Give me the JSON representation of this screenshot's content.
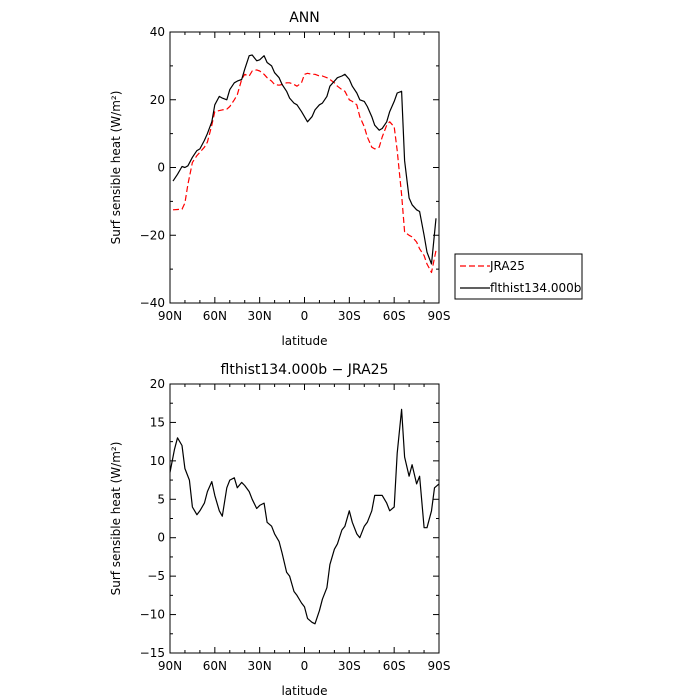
{
  "chart_data": [
    {
      "type": "line",
      "title": "ANN",
      "xlabel": "latitude",
      "ylabel": "Surf sensible heat (W/m²)",
      "xlim": [
        90,
        -90
      ],
      "ylim": [
        -40,
        40
      ],
      "xticks": [
        90,
        60,
        30,
        0,
        -30,
        -60,
        -90
      ],
      "xtick_labels": [
        "90N",
        "60N",
        "30N",
        "0",
        "30S",
        "60S",
        "90S"
      ],
      "yticks": [
        -40,
        -20,
        0,
        20,
        40
      ],
      "ytick_labels": [
        "−40",
        "−20",
        "0",
        "20",
        "40"
      ],
      "legend_position": "right",
      "series": [
        {
          "name": "JRA25",
          "color": "#ff0000",
          "style": "dashed",
          "x": [
            88,
            85,
            82,
            80,
            78,
            75,
            72,
            70,
            67,
            65,
            62,
            60,
            57,
            55,
            52,
            50,
            47,
            45,
            42,
            40,
            37,
            35,
            32,
            30,
            27,
            25,
            22,
            20,
            17,
            15,
            12,
            10,
            7,
            5,
            2,
            0,
            -2,
            -5,
            -7,
            -10,
            -12,
            -15,
            -17,
            -20,
            -22,
            -25,
            -27,
            -30,
            -32,
            -35,
            -37,
            -40,
            -42,
            -45,
            -47,
            -50,
            -52,
            -55,
            -57,
            -60,
            -62,
            -65,
            -67,
            -70,
            -72,
            -75,
            -77,
            -80,
            -82,
            -85,
            -88
          ],
          "y": [
            -12.5,
            -12.4,
            -12.3,
            -10.5,
            -5.0,
            1.5,
            3.5,
            4.5,
            6.0,
            7.5,
            12.5,
            16.5,
            16.8,
            17.0,
            17.2,
            18.0,
            20.0,
            21.5,
            26.0,
            27.5,
            27.0,
            28.5,
            28.8,
            28.5,
            27.5,
            26.5,
            25.5,
            24.5,
            24.3,
            24.5,
            25.0,
            25.0,
            24.5,
            24.0,
            25.0,
            27.5,
            27.8,
            27.5,
            27.5,
            27.0,
            27.0,
            26.5,
            26.0,
            25.0,
            24.0,
            23.0,
            22.5,
            20.0,
            19.5,
            18.5,
            15.0,
            12.0,
            9.0,
            6.0,
            5.5,
            6.0,
            9.0,
            12.5,
            13.5,
            12.0,
            5.0,
            -8.0,
            -19.0,
            -20.0,
            -20.5,
            -22.0,
            -24.0,
            -26.0,
            -28.5,
            -31.0,
            -24.5
          ]
        },
        {
          "name": "flthist134.000b",
          "color": "#000000",
          "style": "solid",
          "x": [
            88,
            85,
            82,
            80,
            78,
            75,
            72,
            70,
            67,
            65,
            62,
            60,
            57,
            55,
            52,
            50,
            47,
            45,
            42,
            40,
            37,
            35,
            32,
            30,
            27,
            25,
            22,
            20,
            17,
            15,
            12,
            10,
            7,
            5,
            2,
            0,
            -2,
            -5,
            -7,
            -10,
            -12,
            -15,
            -17,
            -20,
            -22,
            -25,
            -27,
            -30,
            -32,
            -35,
            -37,
            -40,
            -42,
            -45,
            -47,
            -50,
            -52,
            -55,
            -57,
            -60,
            -62,
            -65,
            -67,
            -70,
            -72,
            -75,
            -77,
            -80,
            -82,
            -85,
            -88
          ],
          "y": [
            -4.0,
            -2.0,
            0.3,
            0.0,
            0.5,
            3.0,
            5.0,
            5.5,
            8.0,
            10.0,
            13.5,
            18.5,
            21.0,
            20.5,
            20.0,
            23.0,
            25.0,
            25.5,
            26.0,
            29.0,
            33.0,
            33.2,
            31.5,
            31.8,
            33.0,
            31.0,
            30.0,
            28.0,
            26.5,
            24.5,
            22.5,
            20.5,
            19.0,
            18.5,
            16.5,
            15.0,
            13.5,
            15.0,
            17.0,
            18.5,
            19.0,
            21.0,
            24.0,
            25.5,
            26.5,
            27.0,
            27.5,
            26.0,
            24.0,
            22.0,
            20.0,
            19.5,
            18.0,
            15.0,
            12.5,
            11.0,
            11.5,
            13.5,
            16.5,
            19.5,
            22.0,
            22.5,
            2.0,
            -9.0,
            -11.0,
            -12.5,
            -13.0,
            -20.0,
            -25.0,
            -28.5,
            -15.0
          ]
        }
      ]
    },
    {
      "type": "line",
      "title": "flthist134.000b − JRA25",
      "xlabel": "latitude",
      "ylabel": "Surf sensible heat (W/m²)",
      "xlim": [
        90,
        -90
      ],
      "ylim": [
        -15,
        20
      ],
      "xticks": [
        90,
        60,
        30,
        0,
        -30,
        -60,
        -90
      ],
      "xtick_labels": [
        "90N",
        "60N",
        "30N",
        "0",
        "30S",
        "60S",
        "90S"
      ],
      "yticks": [
        -15,
        -10,
        -5,
        0,
        5,
        10,
        15,
        20
      ],
      "ytick_labels": [
        "−15",
        "−10",
        "−5",
        "0",
        "5",
        "10",
        "15",
        "20"
      ],
      "series": [
        {
          "color": "#000000",
          "style": "solid",
          "x": [
            90,
            87,
            85,
            82,
            80,
            77,
            75,
            72,
            70,
            67,
            65,
            62,
            60,
            57,
            55,
            52,
            50,
            47,
            45,
            42,
            40,
            37,
            35,
            32,
            30,
            27,
            25,
            22,
            20,
            17,
            15,
            12,
            10,
            7,
            5,
            2,
            0,
            -2,
            -5,
            -7,
            -10,
            -12,
            -15,
            -17,
            -20,
            -22,
            -25,
            -27,
            -30,
            -32,
            -35,
            -37,
            -40,
            -42,
            -45,
            -47,
            -50,
            -52,
            -55,
            -57,
            -60,
            -62,
            -65,
            -67,
            -70,
            -72,
            -75,
            -77,
            -80,
            -82,
            -85,
            -87,
            -90
          ],
          "y": [
            8.5,
            11.5,
            13.0,
            12.0,
            9.0,
            7.5,
            4.0,
            3.0,
            3.5,
            4.5,
            6.0,
            7.3,
            5.5,
            3.5,
            2.8,
            6.5,
            7.5,
            7.8,
            6.5,
            7.2,
            6.8,
            6.0,
            5.0,
            3.8,
            4.2,
            4.5,
            2.0,
            1.5,
            0.5,
            -0.5,
            -2.0,
            -4.5,
            -5.0,
            -7.0,
            -7.5,
            -8.5,
            -9.0,
            -10.5,
            -11.0,
            -11.2,
            -9.5,
            -8.0,
            -6.5,
            -3.5,
            -1.5,
            -0.8,
            1.0,
            1.5,
            3.5,
            2.0,
            0.5,
            0.0,
            1.5,
            2.0,
            3.5,
            5.5,
            5.5,
            5.5,
            4.5,
            3.5,
            4.0,
            11.0,
            16.7,
            10.5,
            8.0,
            9.5,
            7.0,
            8.0,
            1.3,
            1.3,
            3.5,
            6.5,
            7.0
          ]
        }
      ]
    }
  ]
}
